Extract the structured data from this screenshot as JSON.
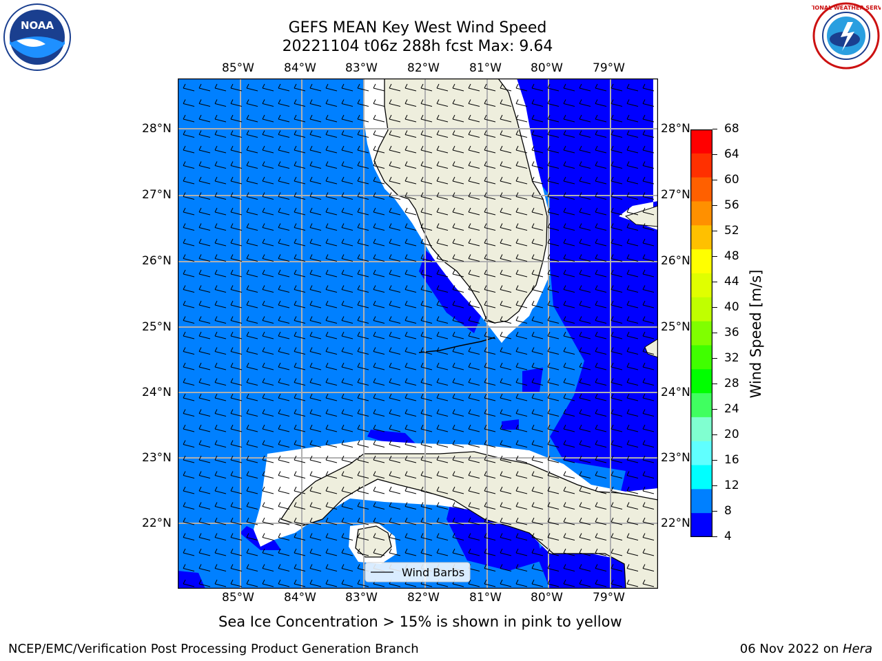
{
  "title": {
    "line1": "GEFS MEAN Key West Wind Speed",
    "line2": "20221104 t06z 288h fcst   Max: 9.64"
  },
  "logos": {
    "left": {
      "name": "noaa-logo",
      "text": "NOAA"
    },
    "right": {
      "name": "nws-logo",
      "text": "NATIONAL WEATHER SERVICE"
    }
  },
  "map": {
    "lon_labels": [
      "85°W",
      "84°W",
      "83°W",
      "82°W",
      "81°W",
      "80°W",
      "79°W"
    ],
    "lat_labels": [
      "28°N",
      "27°N",
      "26°N",
      "25°N",
      "24°N",
      "23°N",
      "22°N"
    ],
    "legend_label": "Wind Barbs",
    "colors": {
      "land": "#eeeedd",
      "wind_4_8": "#0000ff",
      "wind_8_12": "#0080ff",
      "grid": "#b0b0b0"
    }
  },
  "colorbar": {
    "label": "Wind Speed [m/s]",
    "ticks": [
      "68",
      "64",
      "60",
      "56",
      "52",
      "48",
      "44",
      "40",
      "36",
      "32",
      "28",
      "24",
      "20",
      "16",
      "12",
      "8",
      "4"
    ],
    "colors": [
      "#ff0000",
      "#ff3000",
      "#ff6000",
      "#ff9000",
      "#ffc000",
      "#ffff00",
      "#e0ff00",
      "#c0ff00",
      "#80ff00",
      "#40ff00",
      "#00ff00",
      "#40ff60",
      "#80ffd0",
      "#60ffff",
      "#00ffff",
      "#0080ff",
      "#0000ff"
    ]
  },
  "chart_data": {
    "type": "heatmap",
    "title": "GEFS MEAN Key West Wind Speed",
    "subtitle": "20221104 t06z 288h fcst   Max: 9.64",
    "x": [
      "85°W",
      "84°W",
      "83°W",
      "82°W",
      "81°W",
      "80°W",
      "79°W"
    ],
    "y": [
      "28°N",
      "27°N",
      "26°N",
      "25°N",
      "24°N",
      "23°N",
      "22°N"
    ],
    "colorbar_label": "Wind Speed [m/s]",
    "colorbar_range": [
      4,
      68
    ],
    "max_value": 9.64,
    "visible_bins": [
      "4-8",
      "8-12"
    ]
  },
  "footer": {
    "note": "Sea Ice Concentration > 15% is shown in pink to yellow",
    "left": "NCEP/EMC/Verification Post Processing Product Generation Branch",
    "right_date": "06 Nov 2022 on ",
    "right_system": "Hera"
  }
}
